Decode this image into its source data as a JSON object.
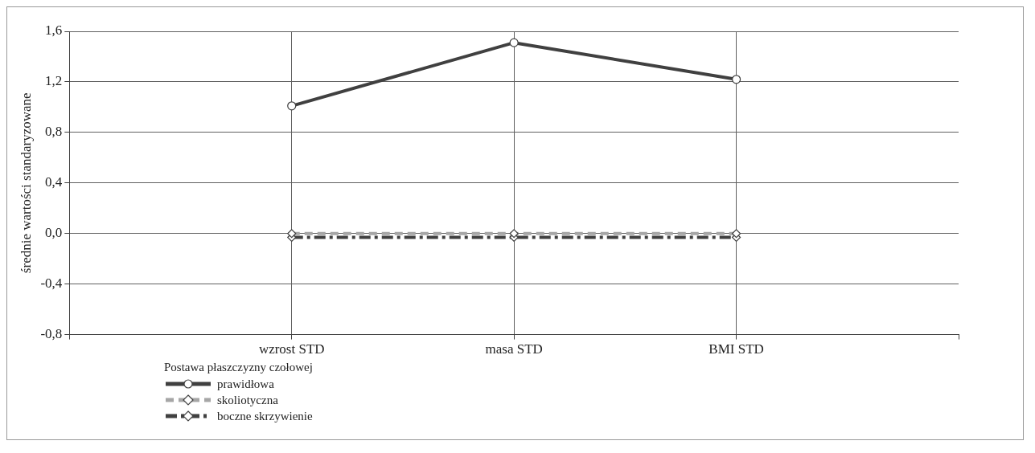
{
  "chart_data": {
    "type": "line",
    "ylabel": "średnie wartości standaryzowane",
    "legend_title": "Postawa płaszczyzny czołowej",
    "legend": "bottom left",
    "grid": true,
    "categories": [
      null,
      "wzrost STD",
      "masa STD",
      "BMI STD",
      null
    ],
    "ylim": [
      -0.8,
      1.6
    ],
    "yticks": [
      {
        "value": -0.8,
        "label": "-0,8"
      },
      {
        "value": -0.4,
        "label": "-0,4"
      },
      {
        "value": 0,
        "label": "0,0"
      },
      {
        "value": 0.4,
        "label": "0,4"
      },
      {
        "value": 0.8,
        "label": "0,8"
      },
      {
        "value": 1.2,
        "label": "1,2"
      },
      {
        "value": 1.6,
        "label": "1,6"
      }
    ],
    "series": [
      {
        "name": "prawidłowa",
        "color": "#404040",
        "marker": "circle",
        "line_style": "solid",
        "values": [
          null,
          1.01,
          1.51,
          1.22,
          null
        ]
      },
      {
        "name": "skoliotyczna",
        "color": "#a6a6a6",
        "marker": "diamond",
        "line_style": "dashed",
        "values": [
          null,
          0.0,
          0.0,
          0.0,
          null
        ]
      },
      {
        "name": "boczne skrzywienie",
        "color": "#404040",
        "marker": "diamond",
        "line_style": "dashdot",
        "values": [
          null,
          -0.03,
          -0.03,
          -0.03,
          null
        ]
      }
    ]
  }
}
